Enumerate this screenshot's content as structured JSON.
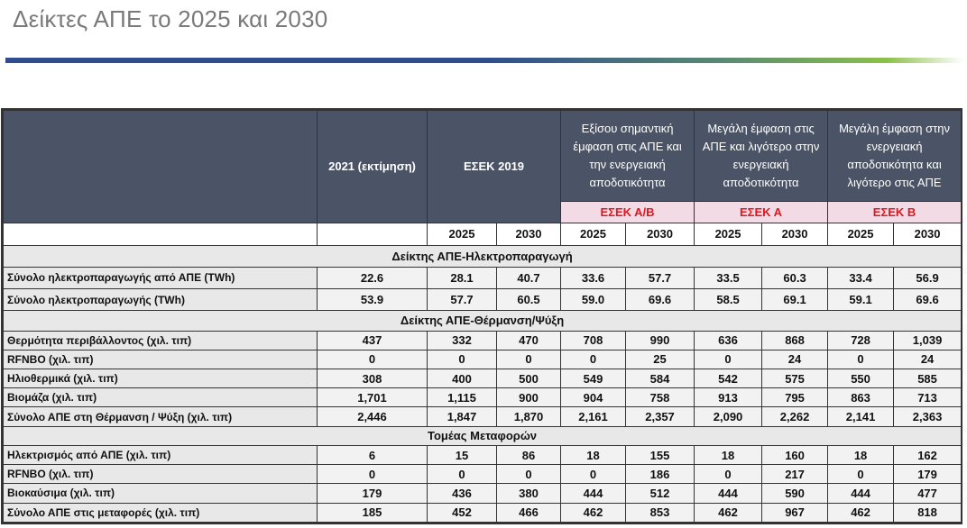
{
  "title": "Δείκτες ΑΠΕ το 2025 και 2030",
  "header": {
    "col_2021": "2021 (εκτίμηση)",
    "col_esek2019": "ΕΣΕΚ 2019",
    "col_ab": "Εξίσου σημαντική έμφαση στις ΑΠΕ και την ενεργειακή αποδοτικότητα",
    "col_a": "Μεγάλη έμφαση στις ΑΠΕ και λιγότερο στην ενεργειακή αποδοτικότητα",
    "col_b": "Μεγάλη έμφαση στην ενεργειακή αποδοτικότητα και λιγότερο στις ΑΠΕ",
    "esek_ab": "ΕΣΕΚ Α/Β",
    "esek_a": "ΕΣΕΚ Α",
    "esek_b": "ΕΣΕΚ Β",
    "years": [
      "2025",
      "2030",
      "2025",
      "2030",
      "2025",
      "2030",
      "2025",
      "2030"
    ]
  },
  "sections": [
    {
      "title": "Δείκτης ΑΠΕ-Ηλεκτροπαραγωγή",
      "rows": [
        {
          "label": "Σύνολο ηλεκτροπαραγωγής από ΑΠΕ (TWh)",
          "values": [
            "22.6",
            "28.1",
            "40.7",
            "33.6",
            "57.7",
            "33.5",
            "60.3",
            "33.4",
            "56.9"
          ]
        },
        {
          "label": "Σύνολο ηλεκτροπαραγωγής (TWh)",
          "values": [
            "53.9",
            "57.7",
            "60.5",
            "59.0",
            "69.6",
            "58.5",
            "69.1",
            "59.1",
            "69.6"
          ]
        }
      ]
    },
    {
      "title": "Δείκτης ΑΠΕ-Θέρμανση/Ψύξη",
      "rows": [
        {
          "label": "Θερμότητα περιβάλλοντος (χιλ. τιπ)",
          "values": [
            "437",
            "332",
            "470",
            "708",
            "990",
            "636",
            "868",
            "728",
            "1,039"
          ]
        },
        {
          "label": "RFNBO (χιλ. τιπ)",
          "values": [
            "0",
            "0",
            "0",
            "0",
            "25",
            "0",
            "24",
            "0",
            "24"
          ]
        },
        {
          "label": "Ηλιοθερμικά (χιλ. τιπ)",
          "values": [
            "308",
            "400",
            "500",
            "549",
            "584",
            "542",
            "575",
            "550",
            "585"
          ]
        },
        {
          "label": "Βιομάζα (χιλ. τιπ)",
          "values": [
            "1,701",
            "1,115",
            "900",
            "904",
            "758",
            "913",
            "795",
            "863",
            "713"
          ]
        },
        {
          "label": "Σύνολο ΑΠΕ στη Θέρμανση / Ψύξη (χιλ. τιπ)",
          "values": [
            "2,446",
            "1,847",
            "1,870",
            "2,161",
            "2,357",
            "2,090",
            "2,262",
            "2,141",
            "2,363"
          ]
        }
      ]
    },
    {
      "title": "Τομέας Μεταφορών",
      "rows": [
        {
          "label": "Ηλεκτρισμός από ΑΠΕ (χιλ. τιπ)",
          "values": [
            "6",
            "15",
            "86",
            "18",
            "155",
            "18",
            "160",
            "18",
            "162"
          ]
        },
        {
          "label": "RFNBO (χιλ. τιπ)",
          "values": [
            "0",
            "0",
            "0",
            "0",
            "186",
            "0",
            "217",
            "0",
            "179"
          ]
        },
        {
          "label": "Βιοκαύσιμα (χιλ. τιπ)",
          "values": [
            "179",
            "436",
            "380",
            "444",
            "512",
            "444",
            "590",
            "444",
            "477"
          ]
        },
        {
          "label": "Σύνολο ΑΠΕ στις μεταφορές (χιλ. τιπ)",
          "values": [
            "185",
            "452",
            "466",
            "462",
            "853",
            "462",
            "967",
            "462",
            "818"
          ]
        }
      ]
    }
  ]
}
